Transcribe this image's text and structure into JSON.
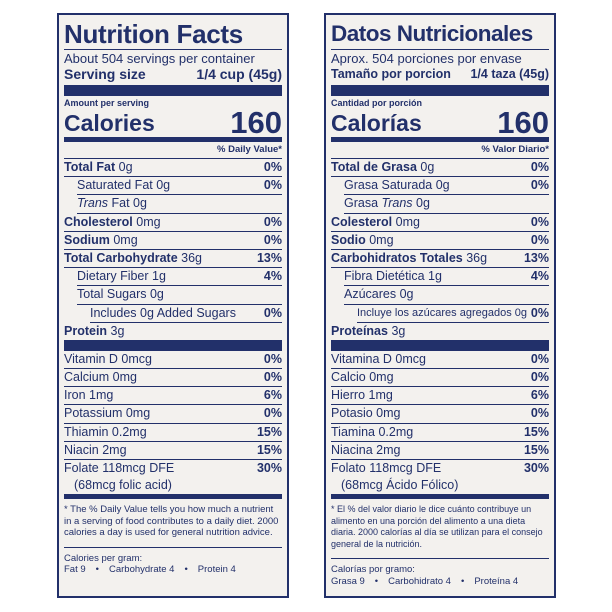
{
  "en": {
    "title": "Nutrition Facts",
    "servings": "About 504 servings per container",
    "serving_size_label": "Serving size",
    "serving_size_value": "1/4 cup (45g)",
    "amount_per_serving": "Amount per serving",
    "calories_label": "Calories",
    "calories_value": "160",
    "daily_value_header": "% Daily Value*",
    "total_fat_label": "Total Fat",
    "total_fat_amount": "0g",
    "total_fat_pct": "0%",
    "sat_fat_label": "Saturated Fat 0g",
    "sat_fat_pct": "0%",
    "trans_label": "Trans",
    "trans_rest": "Fat 0g",
    "chol_label": "Cholesterol",
    "chol_amount": "0mg",
    "chol_pct": "0%",
    "sodium_label": "Sodium",
    "sodium_amount": "0mg",
    "sodium_pct": "0%",
    "carb_label": "Total Carbohydrate",
    "carb_amount": "36g",
    "carb_pct": "13%",
    "fiber_label": "Dietary Fiber 1g",
    "fiber_pct": "4%",
    "sugars_label": "Total Sugars 0g",
    "added_label": "Includes 0g Added Sugars",
    "added_pct": "0%",
    "protein_label": "Protein",
    "protein_amount": "3g",
    "vitamins": [
      {
        "label": "Vitamin D 0mcg",
        "pct": "0%"
      },
      {
        "label": "Calcium 0mg",
        "pct": "0%"
      },
      {
        "label": "Iron 1mg",
        "pct": "6%"
      },
      {
        "label": "Potassium 0mg",
        "pct": "0%"
      },
      {
        "label": "Thiamin 0.2mg",
        "pct": "15%"
      },
      {
        "label": "Niacin 2mg",
        "pct": "15%"
      },
      {
        "label": "Folate 118mcg DFE",
        "pct": "30%"
      }
    ],
    "folate_sub": "(68mcg folic acid)",
    "footnote": "* The % Daily Value tells you how much a nutrient in a serving of food contributes to a daily diet. 2000 calories a day is used for general nutrition advice.",
    "cpg_title": "Calories per gram:",
    "cpg_fat": "Fat 9",
    "cpg_sep1": "•",
    "cpg_carb": "Carbohydrate 4",
    "cpg_sep2": "•",
    "cpg_protein": "Protein 4"
  },
  "es": {
    "title": "Datos Nutricionales",
    "servings": "Aprox. 504 porciones por envase",
    "serving_size_label": "Tamaño por porcion",
    "serving_size_value": "1/4 taza (45g)",
    "amount_per_serving": "Cantidad por porción",
    "calories_label": "Calorías",
    "calories_value": "160",
    "daily_value_header": "% Valor Diario*",
    "total_fat_label": "Total de Grasa",
    "total_fat_amount": "0g",
    "total_fat_pct": "0%",
    "sat_fat_label": "Grasa Saturada 0g",
    "sat_fat_pct": "0%",
    "trans_pre": "Grasa",
    "trans_label": "Trans",
    "trans_rest": "0g",
    "chol_label": "Colesterol",
    "chol_amount": "0mg",
    "chol_pct": "0%",
    "sodium_label": "Sodio",
    "sodium_amount": "0mg",
    "sodium_pct": "0%",
    "carb_label": "Carbohidratos Totales",
    "carb_amount": "36g",
    "carb_pct": "13%",
    "fiber_label": "Fibra Dietética 1g",
    "fiber_pct": "4%",
    "sugars_label": "Azúcares 0g",
    "added_label": "Incluye los azúcares agregados 0g",
    "added_pct": "0%",
    "protein_label": "Proteínas",
    "protein_amount": "3g",
    "vitamins": [
      {
        "label": "Vitamina D 0mcg",
        "pct": "0%"
      },
      {
        "label": "Calcio 0mg",
        "pct": "0%"
      },
      {
        "label": "Hierro 1mg",
        "pct": "6%"
      },
      {
        "label": "Potasio 0mg",
        "pct": "0%"
      },
      {
        "label": "Tiamina 0.2mg",
        "pct": "15%"
      },
      {
        "label": "Niacina 2mg",
        "pct": "15%"
      },
      {
        "label": "Folato 118mcg DFE",
        "pct": "30%"
      }
    ],
    "folate_sub": "(68mcg Ácido Fólico)",
    "footnote": "* El % del valor diario le dice cuánto contribuye un alimento en una porción del alimento a una dieta diaria. 2000 calorías al día se utilizan para el consejo general de la nutrición.",
    "cpg_title": "Calorías por gramo:",
    "cpg_fat": "Grasa 9",
    "cpg_sep1": "•",
    "cpg_carb": "Carbohidrato 4",
    "cpg_sep2": "•",
    "cpg_protein": "Proteína 4"
  },
  "colors": {
    "ink": "#22306a",
    "panel_bg": "#f3f1ee",
    "page_bg": "#ffffff"
  }
}
